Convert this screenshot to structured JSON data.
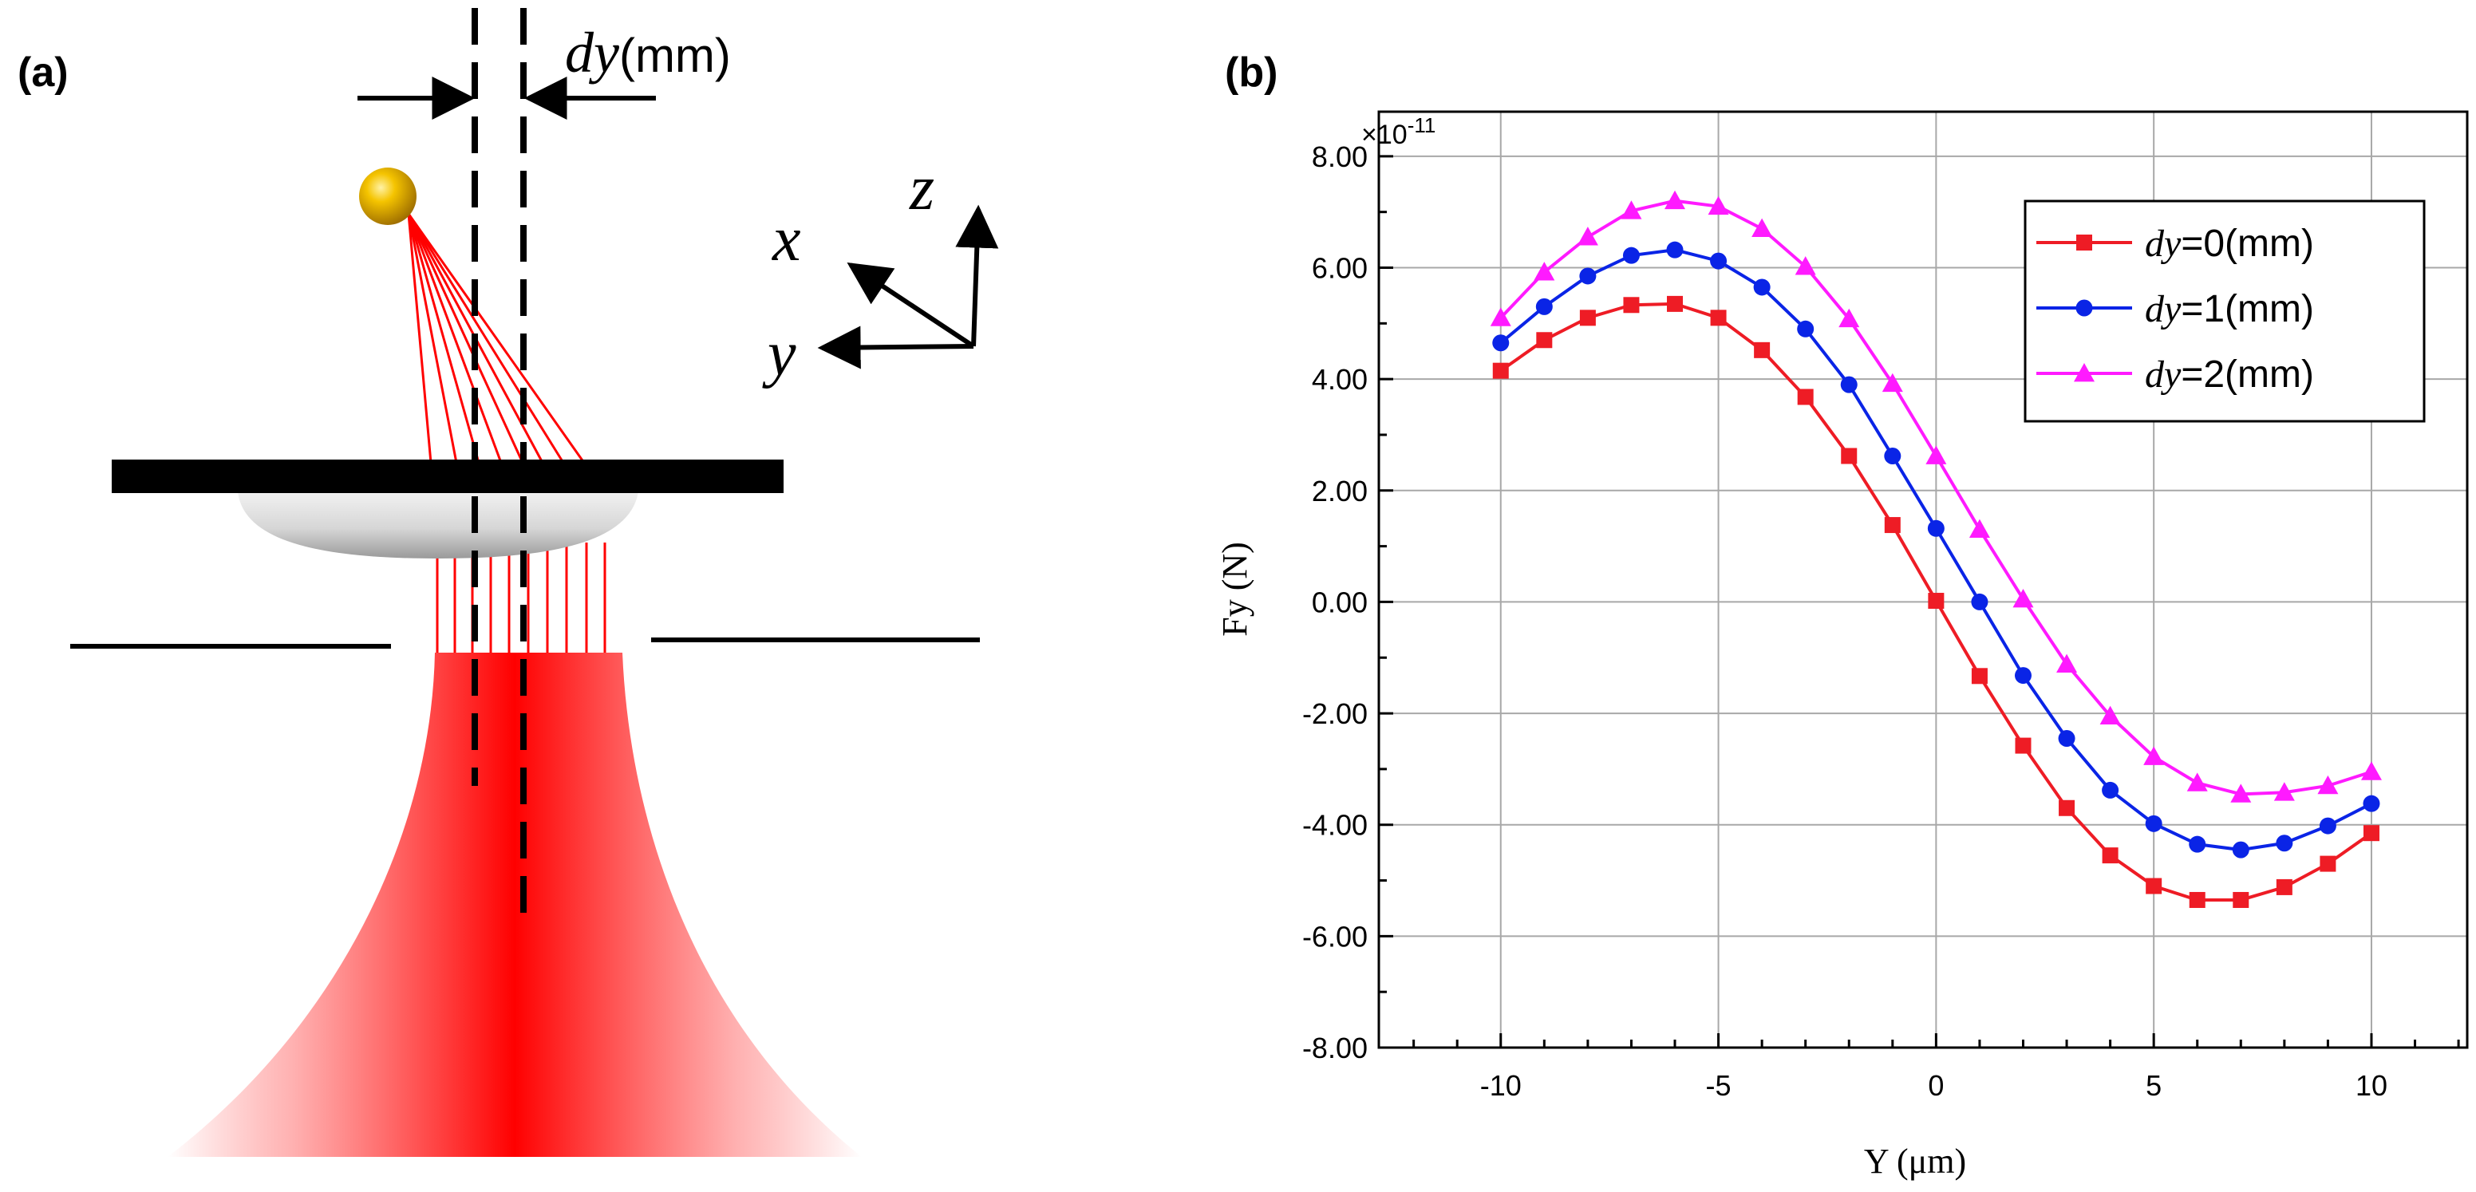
{
  "panel_a": {
    "label": "(a)",
    "offset_label_italic": "dy",
    "offset_label_unit": "(mm)",
    "axis_x": "x",
    "axis_y": "y",
    "axis_z": "z",
    "beam_color": "#ff0000",
    "particle_color": "#e6a800"
  },
  "panel_b": {
    "label": "(b)",
    "exponent_base": "×10",
    "exponent_power": "-11"
  },
  "chart_data": {
    "type": "line",
    "title": "",
    "xlabel": "Y (μm)",
    "ylabel": "Fy (N)",
    "y_multiplier": "×10^-11",
    "xlim": [
      -12.8,
      12.2
    ],
    "ylim": [
      -8,
      8.8
    ],
    "grid": true,
    "legend_position": "top-right",
    "x_ticks": [
      -10,
      -5,
      0,
      5,
      10
    ],
    "x_tick_labels": [
      "-10",
      "-5",
      "0",
      "5",
      "10"
    ],
    "y_ticks": [
      8,
      6,
      4,
      2,
      0,
      -2,
      -4,
      -6,
      -8
    ],
    "y_tick_labels": [
      "8.00",
      "6.00",
      "4.00",
      "2.00",
      "0.00",
      "-2.00",
      "-4.00",
      "-6.00",
      "-8.00"
    ],
    "x": [
      -10,
      -9,
      -8,
      -7,
      -6,
      -5,
      -4,
      -3,
      -2,
      -1,
      0,
      1,
      2,
      3,
      4,
      5,
      6,
      7,
      8,
      9,
      10
    ],
    "series": [
      {
        "name_italic": "dy",
        "name_rest": "=0(mm)",
        "color": "#ee1c25",
        "marker": "square",
        "values": [
          4.15,
          4.7,
          5.1,
          5.33,
          5.35,
          5.1,
          4.52,
          3.68,
          2.62,
          1.38,
          0.02,
          -1.33,
          -2.58,
          -3.7,
          -4.55,
          -5.1,
          -5.35,
          -5.35,
          -5.12,
          -4.7,
          -4.15
        ]
      },
      {
        "name_italic": "dy",
        "name_rest": "=1(mm)",
        "color": "#0a24e6",
        "marker": "circle",
        "values": [
          4.65,
          5.3,
          5.85,
          6.22,
          6.32,
          6.12,
          5.65,
          4.9,
          3.9,
          2.62,
          1.32,
          0.0,
          -1.32,
          -2.45,
          -3.38,
          -3.98,
          -4.35,
          -4.45,
          -4.33,
          -4.02,
          -3.62
        ]
      },
      {
        "name_italic": "dy",
        "name_rest": "=2(mm)",
        "color": "#ff1aff",
        "marker": "triangle",
        "values": [
          5.1,
          5.92,
          6.55,
          7.02,
          7.2,
          7.1,
          6.7,
          6.02,
          5.08,
          3.92,
          2.62,
          1.3,
          0.05,
          -1.12,
          -2.05,
          -2.78,
          -3.25,
          -3.45,
          -3.42,
          -3.3,
          -3.05
        ]
      }
    ]
  }
}
